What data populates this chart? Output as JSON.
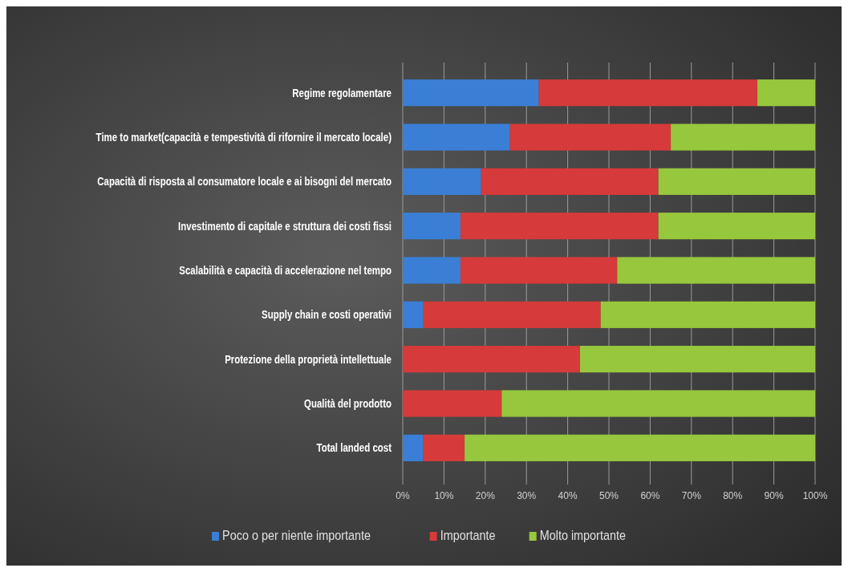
{
  "chart_data": {
    "type": "bar",
    "orientation": "horizontal",
    "stacked": true,
    "categories": [
      "Regime regolamentare",
      "Time to market(capacità e tempestività di rifornire il mercato locale)",
      "Capacità di risposta al consumatore locale e ai bisogni del mercato",
      "Investimento di capitale e struttura dei costi fissi",
      "Scalabilità e capacità di accelerazione nel tempo",
      "Supply chain e costi operativi",
      "Protezione della proprietà intellettuale",
      "Qualità del prodotto",
      "Total landed cost"
    ],
    "series": [
      {
        "name": "Poco o per niente importante",
        "color": "#3a7fd5",
        "values": [
          33,
          26,
          19,
          14,
          14,
          5,
          0,
          0,
          5
        ]
      },
      {
        "name": "Importante",
        "color": "#d63a3a",
        "values": [
          53,
          39,
          43,
          48,
          38,
          43,
          43,
          24,
          10
        ]
      },
      {
        "name": "Molto importante",
        "color": "#97c73d",
        "values": [
          14,
          35,
          38,
          38,
          48,
          52,
          57,
          76,
          85
        ]
      }
    ],
    "xlim": [
      0,
      100
    ],
    "xticks": [
      {
        "value": 0,
        "label": "0%"
      },
      {
        "value": 10,
        "label": "10%"
      },
      {
        "value": 20,
        "label": "20%"
      },
      {
        "value": 30,
        "label": "30%"
      },
      {
        "value": 40,
        "label": "40%"
      },
      {
        "value": 50,
        "label": "50%"
      },
      {
        "value": 60,
        "label": "60%"
      },
      {
        "value": 70,
        "label": "70%"
      },
      {
        "value": 80,
        "label": "80%"
      },
      {
        "value": 90,
        "label": "90%"
      },
      {
        "value": 100,
        "label": "100%"
      }
    ],
    "grid": "x",
    "legend": "bottom"
  }
}
